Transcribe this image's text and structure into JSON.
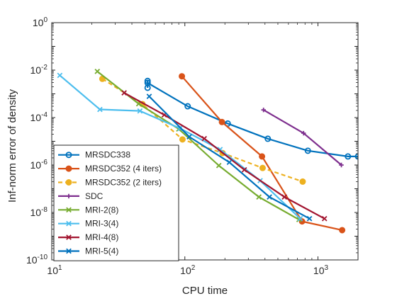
{
  "chart_data": {
    "type": "line",
    "title": "",
    "xlabel": "CPU time",
    "ylabel": "Inf-norm error of density",
    "xscale": "log",
    "yscale": "log",
    "xlim": [
      10,
      2000
    ],
    "ylim": [
      1e-10,
      1
    ],
    "x_ticks": [
      {
        "value": 10,
        "base": "10",
        "exp": "1"
      },
      {
        "value": 100,
        "base": "10",
        "exp": "2"
      },
      {
        "value": 1000,
        "base": "10",
        "exp": "3"
      }
    ],
    "y_ticks": [
      {
        "value": 1e-10,
        "base": "10",
        "exp": "-10"
      },
      {
        "value": 1e-08,
        "base": "10",
        "exp": "-8"
      },
      {
        "value": 1e-06,
        "base": "10",
        "exp": "-6"
      },
      {
        "value": 0.0001,
        "base": "10",
        "exp": "-4"
      },
      {
        "value": 0.01,
        "base": "10",
        "exp": "-2"
      },
      {
        "value": 1,
        "base": "10",
        "exp": "0"
      }
    ],
    "grid": false,
    "legend_position": "bottom-left",
    "series": [
      {
        "name": "MRSDC338",
        "color": "#0072BD",
        "marker": "circle",
        "dash": "solid",
        "x": [
          52.5,
          52.5,
          52.5,
          105,
          210,
          420,
          840,
          1680,
          2000
        ],
        "y": [
          0.0018,
          0.0035,
          0.0029,
          0.0003,
          5.6e-05,
          1.28e-05,
          4e-06,
          2.3e-06,
          2.3e-06
        ]
      },
      {
        "name": "MRSDC352 (4 iters)",
        "color": "#D95319",
        "marker": "circle",
        "dash": "solid",
        "x": [
          95,
          190,
          380,
          760,
          1520
        ],
        "y": [
          0.0055,
          6.5e-05,
          2.3e-06,
          4.2e-09,
          1.8e-09
        ]
      },
      {
        "name": "MRSDC352 (2 iters)",
        "color": "#EDB120",
        "marker": "circle",
        "dash": "dashed",
        "x": [
          24,
          48,
          96,
          192,
          384,
          768
        ],
        "y": [
          0.0043,
          0.00037,
          1.2e-05,
          3.2e-06,
          7.5e-07,
          2e-07
        ]
      },
      {
        "name": "SDC",
        "color": "#7E2F8E",
        "marker": "plus",
        "dash": "solid",
        "x": [
          390,
          780,
          1500
        ],
        "y": [
          0.00021,
          2.2e-05,
          1e-06
        ]
      },
      {
        "name": "MRI-2(8)",
        "color": "#77AC30",
        "marker": "x",
        "dash": "solid",
        "x": [
          22,
          45,
          90,
          180,
          360,
          720
        ],
        "y": [
          0.0088,
          0.00038,
          3.3e-05,
          9.5e-07,
          4.5e-08,
          5e-09
        ]
      },
      {
        "name": "MRI-3(4)",
        "color": "#4DBEEE",
        "marker": "x",
        "dash": "solid",
        "x": [
          11.5,
          23,
          46,
          92,
          184,
          368,
          736
        ],
        "y": [
          0.006,
          0.00022,
          0.00019,
          3.5e-05,
          4.5e-06,
          2.2e-07,
          5.5e-09
        ]
      },
      {
        "name": "MRI-4(8)",
        "color": "#A2142F",
        "marker": "x",
        "dash": "solid",
        "x": [
          35,
          70,
          140,
          280,
          560,
          1120
        ],
        "y": [
          0.0011,
          0.00013,
          1.3e-05,
          6.3e-07,
          4.5e-08,
          5.5e-09
        ]
      },
      {
        "name": "MRI-5(4)",
        "color": "#0072BD",
        "marker": "x",
        "dash": "solid",
        "x": [
          54,
          108,
          216,
          432,
          864
        ],
        "y": [
          0.00078,
          1.55e-05,
          1.3e-06,
          4.5e-08,
          5.5e-09
        ]
      }
    ]
  }
}
